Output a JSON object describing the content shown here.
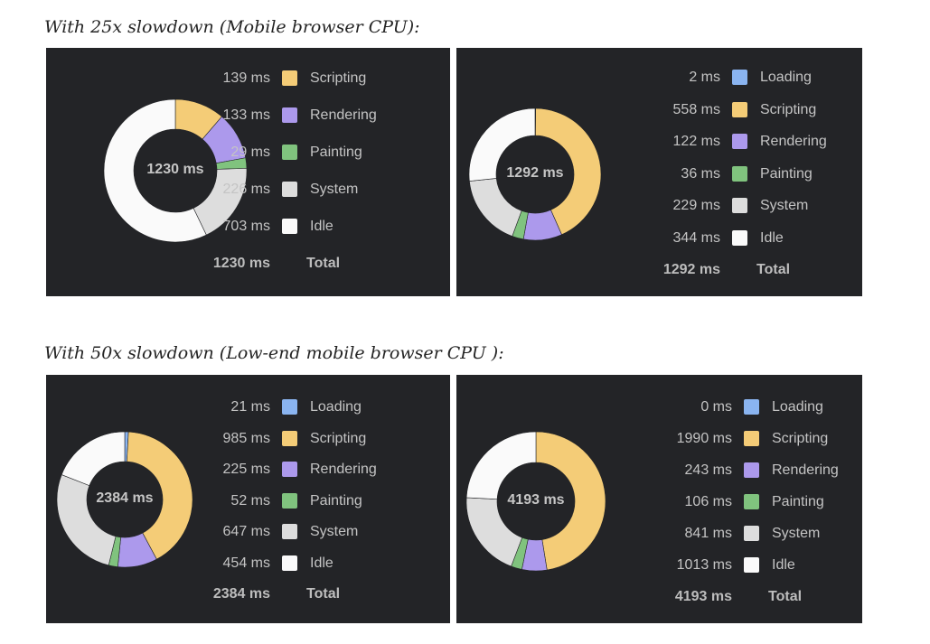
{
  "headings": {
    "first": "With 25x slowdown (Mobile browser CPU):",
    "second": "With 50x slowdown (Low-end mobile browser CPU ):"
  },
  "colors": {
    "Loading": "#8ab4f0",
    "Scripting": "#f4cc77",
    "Rendering": "#ac99ec",
    "Painting": "#80c37e",
    "System": "#dddddd",
    "Idle": "#fafafa",
    "panel_bg": "#232427",
    "text": "#c4c4c4"
  },
  "chart_data": [
    {
      "type": "pie",
      "center_label": "1230 ms",
      "categories": [
        "Scripting",
        "Rendering",
        "Painting",
        "System",
        "Idle"
      ],
      "values": [
        139,
        133,
        29,
        226,
        703
      ],
      "value_labels": [
        "139 ms",
        "133 ms",
        "29 ms",
        "226 ms",
        "703 ms"
      ],
      "total_value_label": "1230 ms",
      "total_label": "Total"
    },
    {
      "type": "pie",
      "center_label": "1292 ms",
      "categories": [
        "Loading",
        "Scripting",
        "Rendering",
        "Painting",
        "System",
        "Idle"
      ],
      "values": [
        2,
        558,
        122,
        36,
        229,
        344
      ],
      "value_labels": [
        "2 ms",
        "558 ms",
        "122 ms",
        "36 ms",
        "229 ms",
        "344 ms"
      ],
      "total_value_label": "1292 ms",
      "total_label": "Total"
    },
    {
      "type": "pie",
      "center_label": "2384 ms",
      "categories": [
        "Loading",
        "Scripting",
        "Rendering",
        "Painting",
        "System",
        "Idle"
      ],
      "values": [
        21,
        985,
        225,
        52,
        647,
        454
      ],
      "value_labels": [
        "21 ms",
        "985 ms",
        "225 ms",
        "52 ms",
        "647 ms",
        "454 ms"
      ],
      "total_value_label": "2384 ms",
      "total_label": "Total"
    },
    {
      "type": "pie",
      "center_label": "4193 ms",
      "categories": [
        "Loading",
        "Scripting",
        "Rendering",
        "Painting",
        "System",
        "Idle"
      ],
      "values": [
        0,
        1990,
        243,
        106,
        841,
        1013
      ],
      "value_labels": [
        "0 ms",
        "1990 ms",
        "243 ms",
        "106 ms",
        "841 ms",
        "1013 ms"
      ],
      "total_value_label": "4193 ms",
      "total_label": "Total"
    }
  ]
}
